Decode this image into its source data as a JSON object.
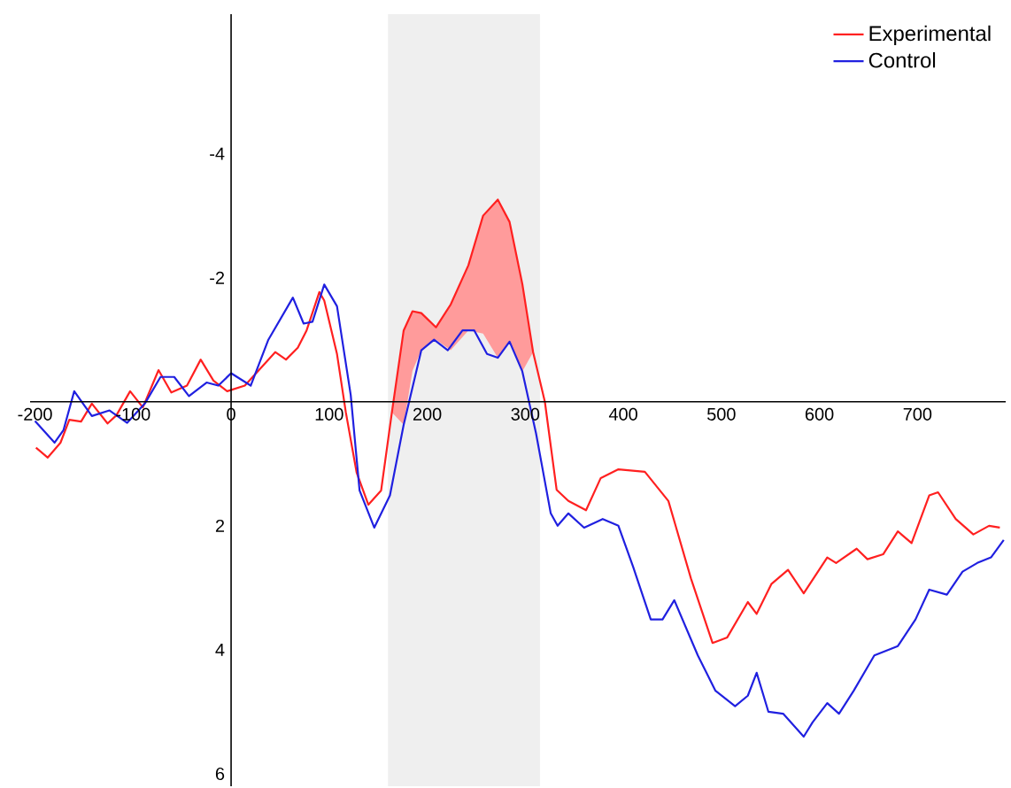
{
  "chart_data": {
    "type": "line",
    "xlim": [
      -205,
      790
    ],
    "ylim": [
      6.2,
      -6.25
    ],
    "xticks": [
      -200,
      -100,
      0,
      100,
      200,
      300,
      400,
      500,
      600,
      700
    ],
    "yticks": [
      -4,
      -2,
      2,
      4,
      6
    ],
    "grid": false,
    "legend": "top right",
    "bands": [
      {
        "axis": "x",
        "from": 160,
        "to": 315,
        "color": "#efefef"
      }
    ],
    "series": [
      {
        "name": "Experimental",
        "color": "#ff2020",
        "lower": [
          null,
          null,
          null,
          null,
          null,
          null,
          null,
          null,
          null,
          null,
          null,
          null,
          null,
          null,
          null,
          null,
          null,
          null,
          null,
          null,
          null,
          null,
          null,
          null,
          null,
          null,
          null,
          null,
          0.17,
          -1.15,
          -1.46,
          -1.43,
          -1.2,
          -1.57,
          -2.2,
          -3.0,
          -3.26,
          -2.9,
          -1.9,
          -0.8,
          null,
          null,
          null,
          null,
          null,
          null,
          null,
          null,
          null,
          null,
          null,
          null,
          null,
          null,
          null,
          null,
          null,
          null,
          null,
          null,
          null,
          null,
          null,
          null,
          null,
          null,
          null,
          null,
          null
        ],
        "upper": [
          null,
          null,
          null,
          null,
          null,
          null,
          null,
          null,
          null,
          null,
          null,
          null,
          null,
          null,
          null,
          null,
          null,
          null,
          null,
          null,
          null,
          null,
          null,
          null,
          null,
          null,
          null,
          null,
          0.17,
          0.37,
          -0.5,
          -0.83,
          -1.0,
          -0.83,
          -1.15,
          -1.1,
          -0.71,
          -0.97,
          -0.49,
          -0.8,
          null,
          null,
          null,
          null,
          null,
          null,
          null,
          null,
          null,
          null,
          null,
          null,
          null,
          null,
          null,
          null,
          null,
          null,
          null,
          null,
          null,
          null,
          null,
          null,
          null,
          null,
          null,
          null,
          null
        ],
        "x": [
          -199,
          -187,
          -174,
          -165,
          -153,
          -142,
          -126,
          -117,
          -103,
          -90,
          -74,
          -61,
          -45,
          -31,
          -18,
          -4,
          14,
          45,
          56,
          68,
          77,
          90,
          95,
          108,
          117,
          128,
          140,
          153,
          164,
          176,
          185,
          194,
          209,
          224,
          242,
          257,
          272,
          284,
          297,
          308,
          320,
          332,
          344,
          362,
          377,
          395,
          422,
          446,
          469,
          491,
          506,
          527,
          536,
          551,
          568,
          584,
          608,
          617,
          638,
          649,
          665,
          680,
          694,
          712,
          721,
          739,
          757,
          773,
          784
        ],
        "values": [
          0.74,
          0.9,
          0.66,
          0.29,
          0.32,
          0.03,
          0.35,
          0.22,
          -0.17,
          0.09,
          -0.51,
          -0.15,
          -0.26,
          -0.68,
          -0.34,
          -0.17,
          -0.26,
          -0.8,
          -0.68,
          -0.87,
          -1.15,
          -1.77,
          -1.63,
          -0.77,
          0.17,
          1.14,
          1.66,
          1.43,
          0.17,
          -1.15,
          -1.46,
          -1.43,
          -1.2,
          -1.57,
          -2.2,
          -3.0,
          -3.26,
          -2.9,
          -1.9,
          -0.8,
          0.0,
          1.42,
          1.6,
          1.75,
          1.23,
          1.09,
          1.13,
          1.6,
          2.85,
          3.89,
          3.8,
          3.23,
          3.42,
          2.94,
          2.71,
          3.09,
          2.51,
          2.6,
          2.37,
          2.54,
          2.46,
          2.09,
          2.28,
          1.51,
          1.46,
          1.89,
          2.14,
          2.0,
          2.03
        ]
      },
      {
        "name": "Control",
        "color": "#2020e0",
        "x": [
          -200,
          -180,
          -171,
          -160,
          -142,
          -124,
          -106,
          -88,
          -72,
          -58,
          -43,
          -25,
          -13,
          0,
          20,
          38,
          63,
          74,
          83,
          95,
          108,
          122,
          131,
          146,
          162,
          176,
          194,
          207,
          221,
          236,
          248,
          261,
          272,
          284,
          297,
          311,
          326,
          333,
          344,
          360,
          379,
          395,
          410,
          428,
          440,
          452,
          476,
          494,
          514,
          527,
          536,
          548,
          563,
          584,
          593,
          608,
          620,
          635,
          656,
          680,
          698,
          712,
          730,
          746,
          761,
          775,
          788
        ],
        "values": [
          0.31,
          0.66,
          0.46,
          -0.17,
          0.23,
          0.14,
          0.34,
          0.03,
          -0.4,
          -0.4,
          -0.09,
          -0.31,
          -0.26,
          -0.46,
          -0.26,
          -1.0,
          -1.68,
          -1.26,
          -1.29,
          -1.89,
          -1.54,
          -0.11,
          1.43,
          2.03,
          1.51,
          0.37,
          -0.83,
          -1.0,
          -0.83,
          -1.15,
          -1.15,
          -0.77,
          -0.71,
          -0.97,
          -0.49,
          0.51,
          1.8,
          2.0,
          1.8,
          2.03,
          1.89,
          2.0,
          2.66,
          3.51,
          3.51,
          3.2,
          4.09,
          4.66,
          4.91,
          4.74,
          4.37,
          5.0,
          5.03,
          5.4,
          5.17,
          4.86,
          5.03,
          4.66,
          4.09,
          3.94,
          3.51,
          3.03,
          3.11,
          2.74,
          2.6,
          2.51,
          2.23
        ]
      }
    ]
  }
}
